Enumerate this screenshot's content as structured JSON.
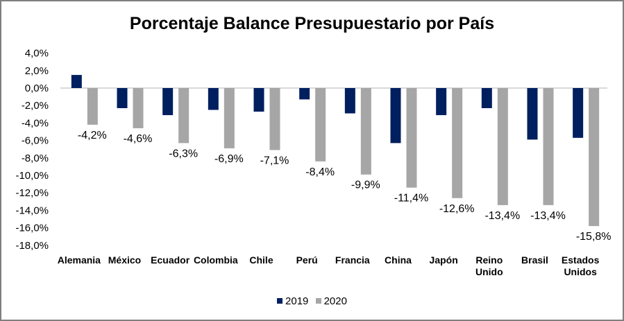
{
  "chart_data": {
    "type": "bar",
    "title": "Porcentaje Balance Presupuestario por País",
    "xlabel": "",
    "ylabel": "",
    "ylim": [
      -18,
      4
    ],
    "yticks": [
      "4,0%",
      "2,0%",
      "0,0%",
      "-2,0%",
      "-4,0%",
      "-6,0%",
      "-8,0%",
      "-10,0%",
      "-12,0%",
      "-14,0%",
      "-16,0%",
      "-18,0%"
    ],
    "ytick_values": [
      4,
      2,
      0,
      -2,
      -4,
      -6,
      -8,
      -10,
      -12,
      -14,
      -16,
      -18
    ],
    "categories": [
      [
        "Alemania"
      ],
      [
        "México"
      ],
      [
        "Ecuador"
      ],
      [
        "Colombia"
      ],
      [
        "Chile"
      ],
      [
        "Perú"
      ],
      [
        "Francia"
      ],
      [
        "China"
      ],
      [
        "Japón"
      ],
      [
        "Reino",
        "Unido"
      ],
      [
        "Brasil"
      ],
      [
        "Estados",
        "Unidos"
      ]
    ],
    "series": [
      {
        "name": "2019",
        "color": "#001f5f",
        "values": [
          1.5,
          -2.3,
          -3.1,
          -2.5,
          -2.7,
          -1.3,
          -2.9,
          -6.3,
          -3.1,
          -2.3,
          -5.9,
          -5.7
        ]
      },
      {
        "name": "2020",
        "color": "#a6a6a6",
        "values": [
          -4.2,
          -4.6,
          -6.3,
          -6.9,
          -7.1,
          -8.4,
          -9.9,
          -11.4,
          -12.6,
          -13.4,
          -13.4,
          -15.8
        ],
        "data_labels": [
          "-4,2%",
          "-4,6%",
          "-6,3%",
          "-6,9%",
          "-7,1%",
          "-8,4%",
          "-9,9%",
          "-11,4%",
          "-12,6%",
          "-13,4%",
          "-13,4%",
          "-15,8%"
        ]
      }
    ],
    "legend": "bottom",
    "grid": false
  }
}
